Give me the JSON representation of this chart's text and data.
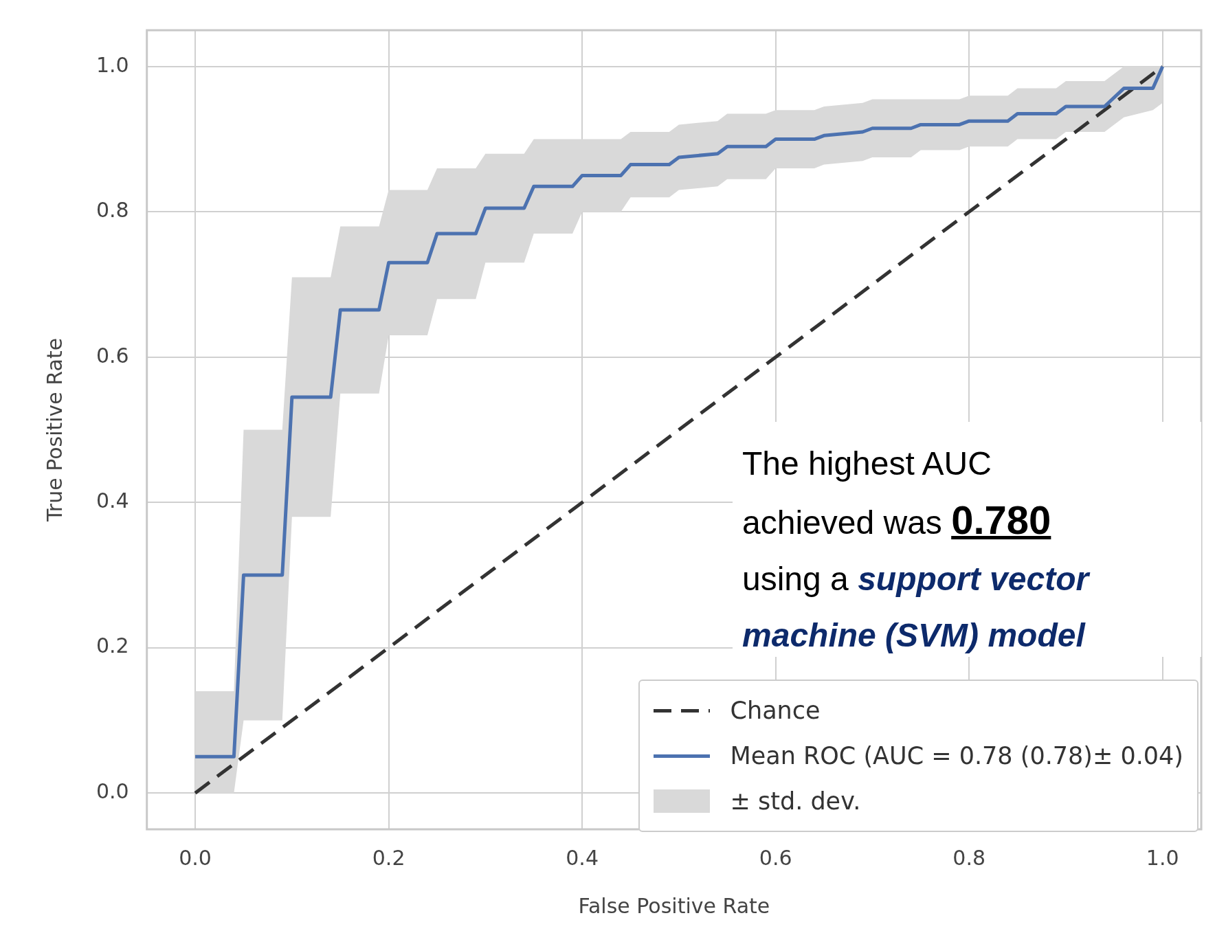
{
  "chart_data": {
    "type": "line",
    "xlabel": "False Positive Rate",
    "ylabel": "True Positive Rate",
    "xlim": [
      -0.05,
      1.04
    ],
    "ylim": [
      -0.05,
      1.05
    ],
    "xticks": [
      {
        "value": 0,
        "label": "0.0"
      },
      {
        "value": 0.2,
        "label": "0.2"
      },
      {
        "value": 0.4,
        "label": "0.4"
      },
      {
        "value": 0.6,
        "label": "0.6"
      },
      {
        "value": 0.8,
        "label": "0.8"
      },
      {
        "value": 1,
        "label": "1.0"
      }
    ],
    "yticks": [
      {
        "value": 0,
        "label": "0.0"
      },
      {
        "value": 0.2,
        "label": "0.2"
      },
      {
        "value": 0.4,
        "label": "0.4"
      },
      {
        "value": 0.6,
        "label": "0.6"
      },
      {
        "value": 0.8,
        "label": "0.8"
      },
      {
        "value": 1,
        "label": "1.0"
      }
    ],
    "grid": true,
    "legend": "bottom right",
    "marker": "none",
    "series": [
      {
        "name": "Chance",
        "type": "line",
        "line_style": "dashed",
        "color": "#333333",
        "x": [
          0,
          0.25,
          0.5,
          0.75,
          1
        ],
        "values": [
          0,
          0.25,
          0.5,
          0.75,
          1
        ]
      },
      {
        "name": "Mean ROC (AUC = 0.78 (0.78)± 0.04)",
        "type": "line",
        "line_style": "solid",
        "color": "#4c72b0",
        "x": [
          0,
          0.04,
          0.05,
          0.09,
          0.1,
          0.14,
          0.15,
          0.19,
          0.2,
          0.24,
          0.25,
          0.29,
          0.3,
          0.34,
          0.35,
          0.39,
          0.4,
          0.44,
          0.45,
          0.49,
          0.5,
          0.54,
          0.55,
          0.59,
          0.6,
          0.64,
          0.65,
          0.69,
          0.7,
          0.74,
          0.75,
          0.79,
          0.8,
          0.84,
          0.85,
          0.89,
          0.9,
          0.94,
          0.96,
          0.99,
          1
        ],
        "values": [
          0.05,
          0.05,
          0.3,
          0.3,
          0.545,
          0.545,
          0.665,
          0.665,
          0.73,
          0.73,
          0.77,
          0.77,
          0.805,
          0.805,
          0.835,
          0.835,
          0.85,
          0.85,
          0.865,
          0.865,
          0.875,
          0.88,
          0.89,
          0.89,
          0.9,
          0.9,
          0.905,
          0.91,
          0.915,
          0.915,
          0.92,
          0.92,
          0.925,
          0.925,
          0.935,
          0.935,
          0.945,
          0.945,
          0.97,
          0.97,
          1
        ],
        "lower": [
          0,
          0,
          0.1,
          0.1,
          0.38,
          0.38,
          0.55,
          0.55,
          0.63,
          0.63,
          0.68,
          0.68,
          0.73,
          0.73,
          0.77,
          0.77,
          0.8,
          0.8,
          0.82,
          0.82,
          0.83,
          0.835,
          0.845,
          0.845,
          0.86,
          0.86,
          0.865,
          0.87,
          0.875,
          0.875,
          0.885,
          0.885,
          0.89,
          0.89,
          0.9,
          0.9,
          0.91,
          0.91,
          0.93,
          0.94,
          0.95
        ],
        "upper": [
          0.14,
          0.14,
          0.5,
          0.5,
          0.71,
          0.71,
          0.78,
          0.78,
          0.83,
          0.83,
          0.86,
          0.86,
          0.88,
          0.88,
          0.9,
          0.9,
          0.9,
          0.9,
          0.91,
          0.91,
          0.92,
          0.925,
          0.935,
          0.935,
          0.94,
          0.94,
          0.945,
          0.95,
          0.955,
          0.955,
          0.955,
          0.955,
          0.96,
          0.96,
          0.97,
          0.97,
          0.98,
          0.98,
          1,
          1,
          1
        ]
      }
    ],
    "annotations": [
      "The highest AUC",
      "achieved was",
      "0.780",
      "using a",
      "support vector machine (SVM) model",
      "± std. dev."
    ]
  }
}
